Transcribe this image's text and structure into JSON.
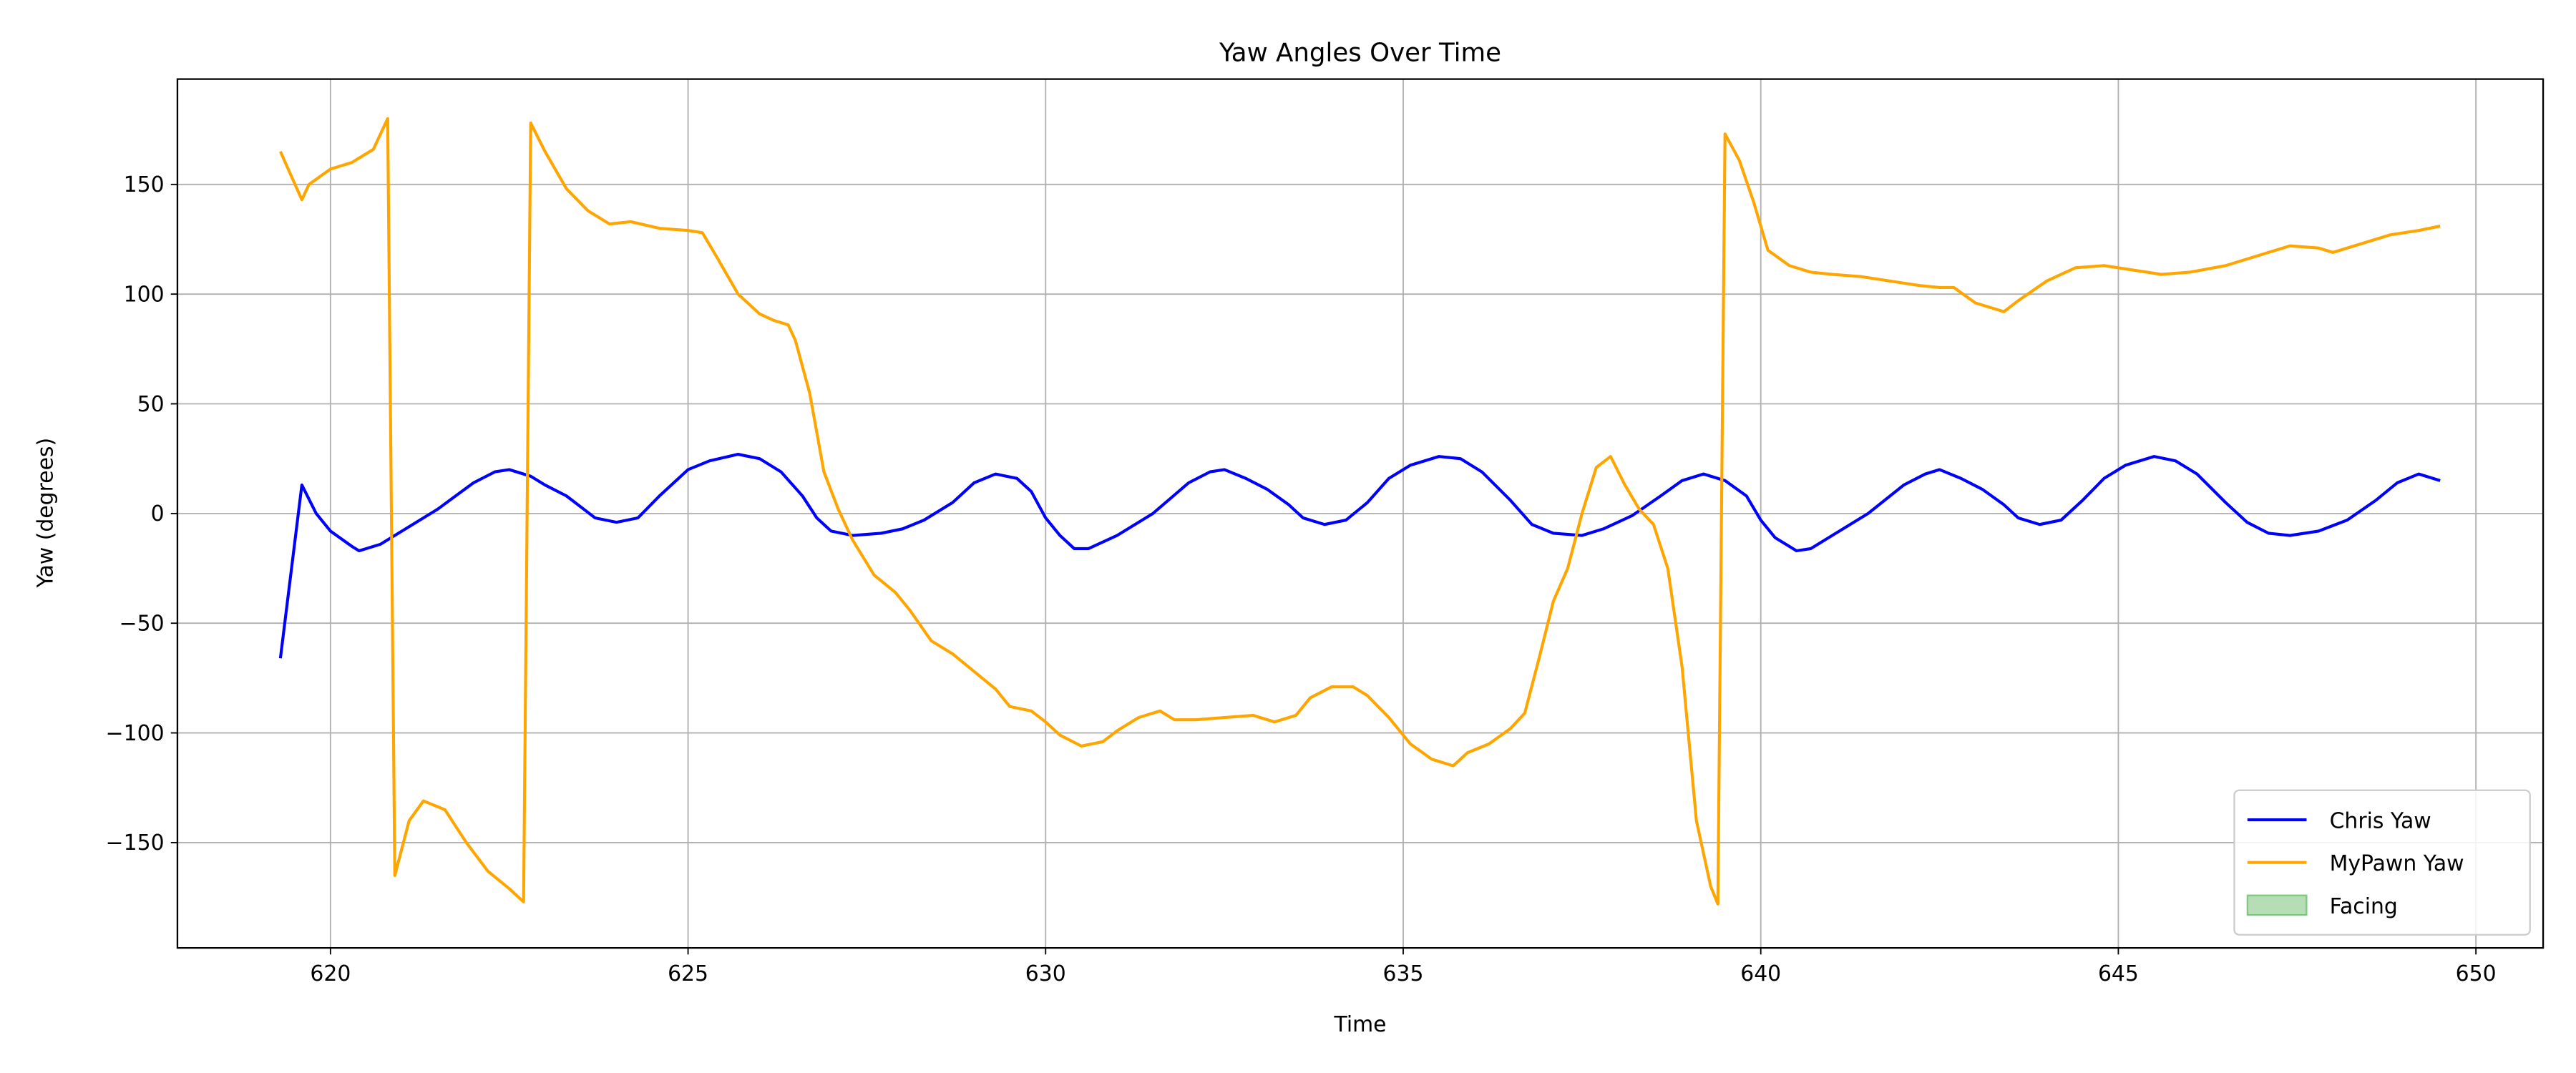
{
  "chart_data": {
    "type": "line",
    "title": "Yaw Angles Over Time",
    "x_label": "Time",
    "y_label": "Yaw (degrees)",
    "xlim": [
      617.86,
      650.94
    ],
    "ylim": [
      -198,
      198
    ],
    "xticks": [
      620,
      625,
      630,
      635,
      640,
      645,
      650
    ],
    "yticks": [
      {
        "value": -150,
        "label": "−150"
      },
      {
        "value": -100,
        "label": "−100"
      },
      {
        "value": -50,
        "label": "−50"
      },
      0,
      50,
      100,
      150
    ],
    "grid": true,
    "legend": "lower right",
    "series": [
      {
        "name": "Chris Yaw",
        "color": "#0000ff",
        "x": [
          619.3,
          619.6,
          619.8,
          620,
          620.3,
          620.4,
          620.7,
          621,
          621.5,
          622,
          622.3,
          622.5,
          622.8,
          623,
          623.3,
          623.5,
          623.7,
          624,
          624.3,
          624.6,
          625,
          625.3,
          625.7,
          626,
          626.3,
          626.6,
          626.8,
          627,
          627.3,
          627.7,
          628,
          628.3,
          628.7,
          629,
          629.3,
          629.6,
          629.8,
          630,
          630.2,
          630.4,
          630.6,
          631,
          631.5,
          632,
          632.3,
          632.5,
          632.8,
          633.1,
          633.4,
          633.6,
          633.9,
          634.2,
          634.5,
          634.8,
          635.1,
          635.5,
          635.8,
          636.1,
          636.5,
          636.8,
          637.1,
          637.5,
          637.8,
          638.2,
          638.6,
          638.9,
          639.2,
          639.5,
          639.8,
          640,
          640.2,
          640.5,
          640.7,
          641,
          641.5,
          642,
          642.3,
          642.5,
          642.8,
          643.1,
          643.4,
          643.6,
          643.9,
          644.2,
          644.5,
          644.8,
          645.1,
          645.5,
          645.8,
          646.1,
          646.5,
          646.8,
          647.1,
          647.4,
          647.8,
          648.2,
          648.6,
          648.9,
          649.2,
          649.5
        ],
        "values": [
          -66,
          13,
          0,
          -8,
          -15,
          -17,
          -14,
          -8,
          2,
          14,
          19,
          20,
          17,
          13,
          8,
          3,
          -2,
          -4,
          -2,
          8,
          20,
          24,
          27,
          25,
          19,
          8,
          -2,
          -8,
          -10,
          -9,
          -7,
          -3,
          5,
          14,
          18,
          16,
          10,
          -2,
          -10,
          -16,
          -16,
          -10,
          0,
          14,
          19,
          20,
          16,
          11,
          4,
          -2,
          -5,
          -3,
          5,
          16,
          22,
          26,
          25,
          19,
          6,
          -5,
          -9,
          -10,
          -7,
          -1,
          8,
          15,
          18,
          15,
          8,
          -3,
          -11,
          -17,
          -16,
          -10,
          0,
          13,
          18,
          20,
          16,
          11,
          4,
          -2,
          -5,
          -3,
          6,
          16,
          22,
          26,
          24,
          18,
          5,
          -4,
          -9,
          -10,
          -8,
          -3,
          6,
          14,
          18,
          15
        ]
      },
      {
        "name": "MyPawn Yaw",
        "color": "#ffa500",
        "x": [
          619.3,
          619.6,
          619.7,
          620,
          620.3,
          620.6,
          620.8,
          620.9,
          621.1,
          621.3,
          621.6,
          621.9,
          622.2,
          622.5,
          622.7,
          622.8,
          623,
          623.3,
          623.6,
          623.9,
          624.2,
          624.6,
          625,
          625.2,
          625.4,
          625.7,
          626,
          626.2,
          626.4,
          626.5,
          626.7,
          626.9,
          627.1,
          627.3,
          627.6,
          627.9,
          628.1,
          628.4,
          628.7,
          629,
          629.3,
          629.5,
          629.8,
          630,
          630.2,
          630.5,
          630.8,
          631,
          631.3,
          631.6,
          631.8,
          632.1,
          632.5,
          632.9,
          633.2,
          633.5,
          633.7,
          634,
          634.3,
          634.5,
          634.8,
          635.1,
          635.4,
          635.7,
          635.9,
          636.2,
          636.5,
          636.7,
          636.9,
          637.1,
          637.3,
          637.5,
          637.7,
          637.9,
          638.1,
          638.3,
          638.5,
          638.7,
          638.9,
          639.1,
          639.3,
          639.4,
          639.5,
          639.7,
          639.9,
          640.1,
          640.4,
          640.7,
          641,
          641.4,
          641.8,
          642.2,
          642.5,
          642.7,
          643,
          643.4,
          643.6,
          644,
          644.4,
          644.8,
          645.2,
          645.6,
          646,
          646.5,
          647,
          647.4,
          647.8,
          648,
          648.4,
          648.8,
          649.2,
          649.5
        ],
        "values": [
          165,
          143,
          150,
          157,
          160,
          166,
          180,
          -165,
          -140,
          -131,
          -135,
          -150,
          -163,
          -171,
          -177,
          178,
          165,
          148,
          138,
          132,
          133,
          130,
          129,
          128,
          117,
          100,
          91,
          88,
          86,
          79,
          55,
          19,
          2,
          -12,
          -28,
          -36,
          -44,
          -58,
          -64,
          -72,
          -80,
          -88,
          -90,
          -95,
          -101,
          -106,
          -104,
          -99,
          -93,
          -90,
          -94,
          -94,
          -93,
          -92,
          -95,
          -92,
          -84,
          -79,
          -79,
          -83,
          -93,
          -105,
          -112,
          -115,
          -109,
          -105,
          -98,
          -91,
          -66,
          -40,
          -25,
          0,
          21,
          26,
          13,
          2,
          -5,
          -25,
          -70,
          -140,
          -170,
          -178,
          173,
          161,
          142,
          120,
          113,
          110,
          109,
          108,
          106,
          104,
          103,
          103,
          96,
          92,
          97,
          106,
          112,
          113,
          111,
          109,
          110,
          113,
          118,
          122,
          121,
          119,
          123,
          127,
          129,
          131
        ]
      },
      {
        "name": "Facing",
        "color": "#2ca02c",
        "style": "area",
        "x": [],
        "values": []
      }
    ]
  }
}
